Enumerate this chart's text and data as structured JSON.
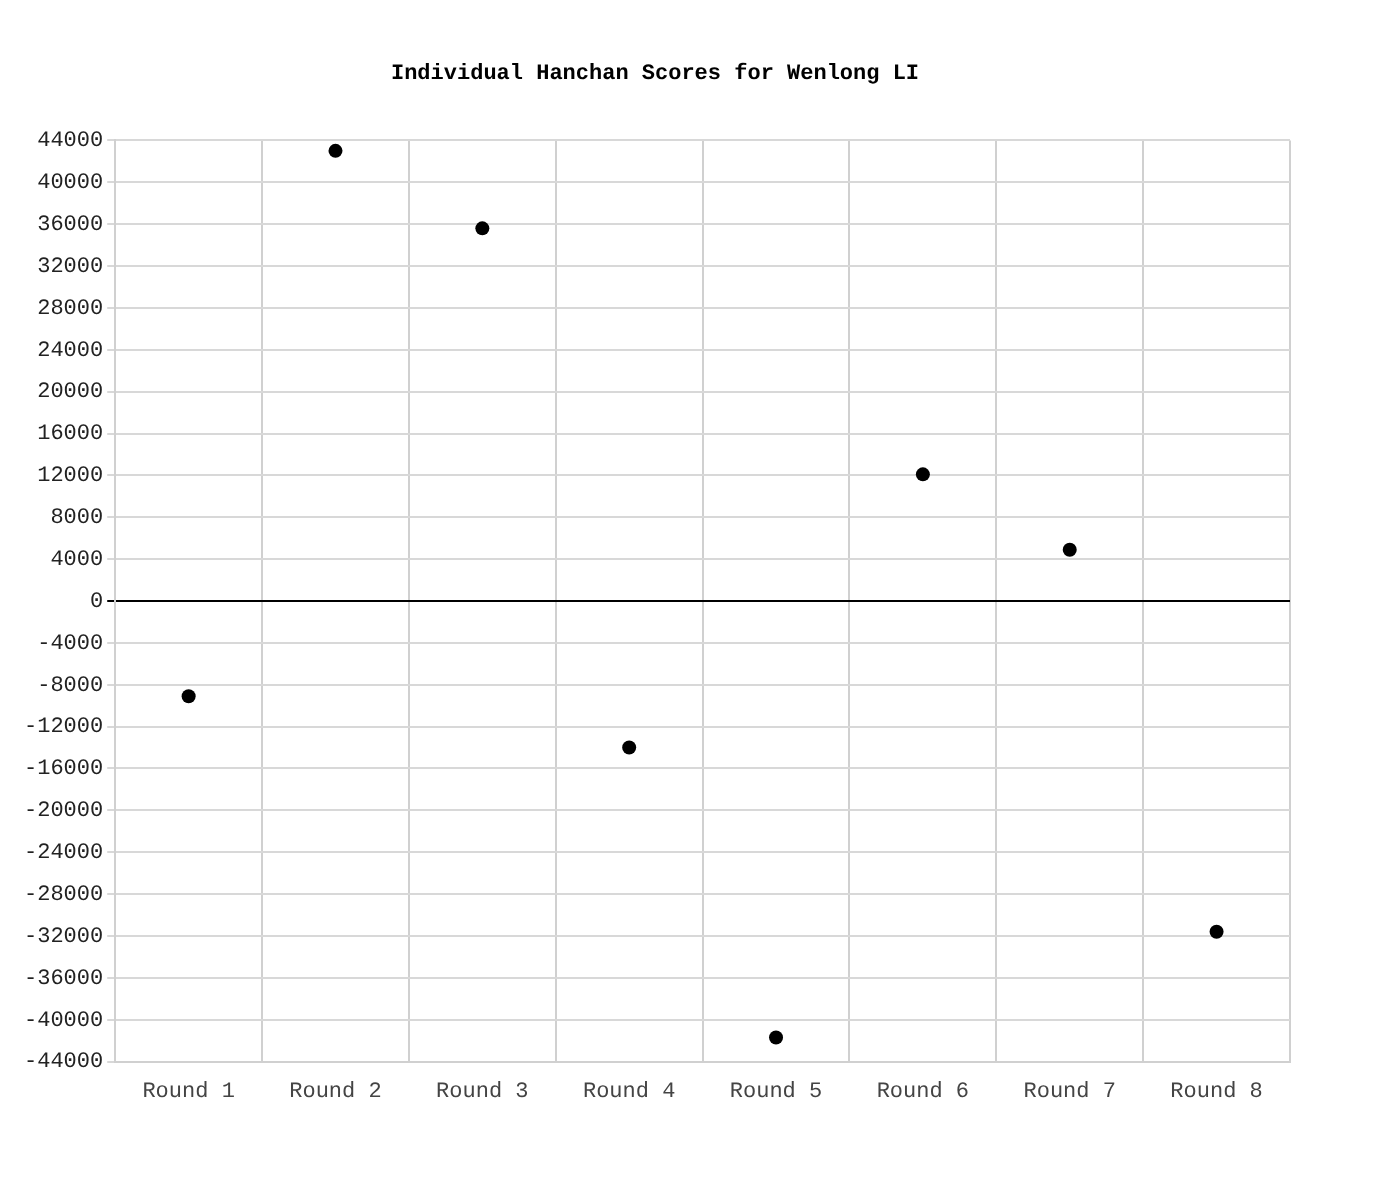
{
  "chart_data": {
    "type": "scatter",
    "title": "Individual Hanchan Scores for Wenlong LI",
    "categories": [
      "Round 1",
      "Round 2",
      "Round 3",
      "Round 4",
      "Round 5",
      "Round 6",
      "Round 7",
      "Round 8"
    ],
    "series": [
      {
        "color": "#000000",
        "values": [
          -9100,
          43000,
          35600,
          -14000,
          -41700,
          12100,
          4900,
          -31600
        ]
      }
    ],
    "ylim": [
      -44000,
      44000
    ],
    "yticks": [
      -44000,
      -40000,
      -36000,
      -32000,
      -28000,
      -24000,
      -20000,
      -16000,
      -12000,
      -8000,
      -4000,
      0,
      4000,
      8000,
      12000,
      16000,
      20000,
      24000,
      28000,
      32000,
      36000,
      40000,
      44000
    ],
    "grid": true,
    "legend": false,
    "marker": "circle"
  }
}
